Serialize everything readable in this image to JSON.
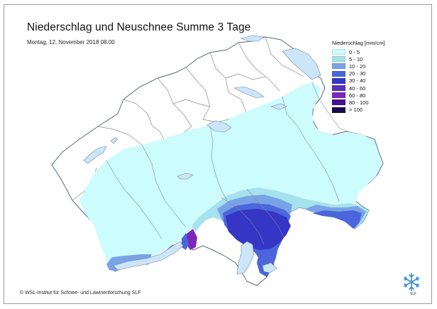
{
  "map": {
    "title": "Niederschlag und Neuschnee Summe 3 Tage",
    "subtitle": "Montag, 12. November 2018 08:00",
    "copyright": "© WSL-Institut für Schnee- und Lawinenforschung SLF",
    "logo_label": "SLF"
  },
  "legend": {
    "title": "Niederschlag [mm/cm]",
    "items": [
      {
        "label": "0 - 5",
        "color": "#ccfcfc"
      },
      {
        "label": "5 - 10",
        "color": "#a6e2ee"
      },
      {
        "label": "10 - 20",
        "color": "#79a3e6"
      },
      {
        "label": "20 - 30",
        "color": "#4b66dc"
      },
      {
        "label": "30 - 40",
        "color": "#3535c6"
      },
      {
        "label": "40 - 60",
        "color": "#5a2fbc"
      },
      {
        "label": "60 - 80",
        "color": "#7d28bd"
      },
      {
        "label": "80 - 100",
        "color": "#45109a"
      },
      {
        "label": "> 100",
        "color": "#1a0a4e"
      }
    ]
  },
  "colors": {
    "lakes": "#cde6f7",
    "outline": "#5a6a7a",
    "boundaries": "#8a8a8a"
  },
  "icons": {
    "logo": "snowflake-icon"
  }
}
